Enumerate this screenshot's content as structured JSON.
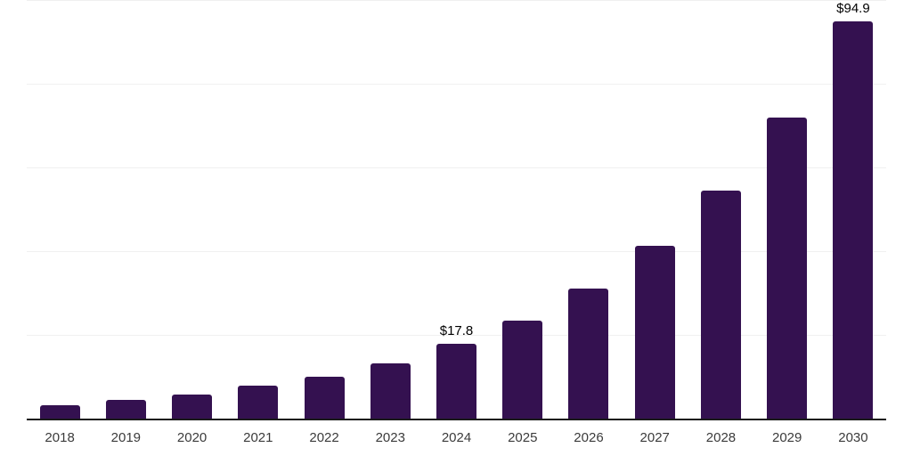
{
  "chart_data": {
    "type": "bar",
    "title": "",
    "xlabel": "",
    "ylabel": "",
    "categories": [
      "2018",
      "2019",
      "2020",
      "2021",
      "2022",
      "2023",
      "2024",
      "2025",
      "2026",
      "2027",
      "2028",
      "2029",
      "2030"
    ],
    "values": [
      3.2,
      4.4,
      5.7,
      7.8,
      10.0,
      13.2,
      17.8,
      23.5,
      31.1,
      41.2,
      54.4,
      71.9,
      94.9
    ],
    "value_prefix": "$",
    "data_labels": [
      {
        "category": "2024",
        "text": "$17.8"
      },
      {
        "category": "2030",
        "text": "$94.9"
      }
    ],
    "ylim": [
      0,
      100
    ],
    "gridline_values": [
      20,
      40,
      60,
      80,
      100
    ],
    "grid": "horizontal-only",
    "legend": "none",
    "colors": {
      "bar": "#341150",
      "gridline": "#f0f0f0",
      "axis_line": "#1a1a1a",
      "tick_label": "#3b3b3b",
      "data_label": "#000000",
      "background": "#ffffff"
    }
  }
}
